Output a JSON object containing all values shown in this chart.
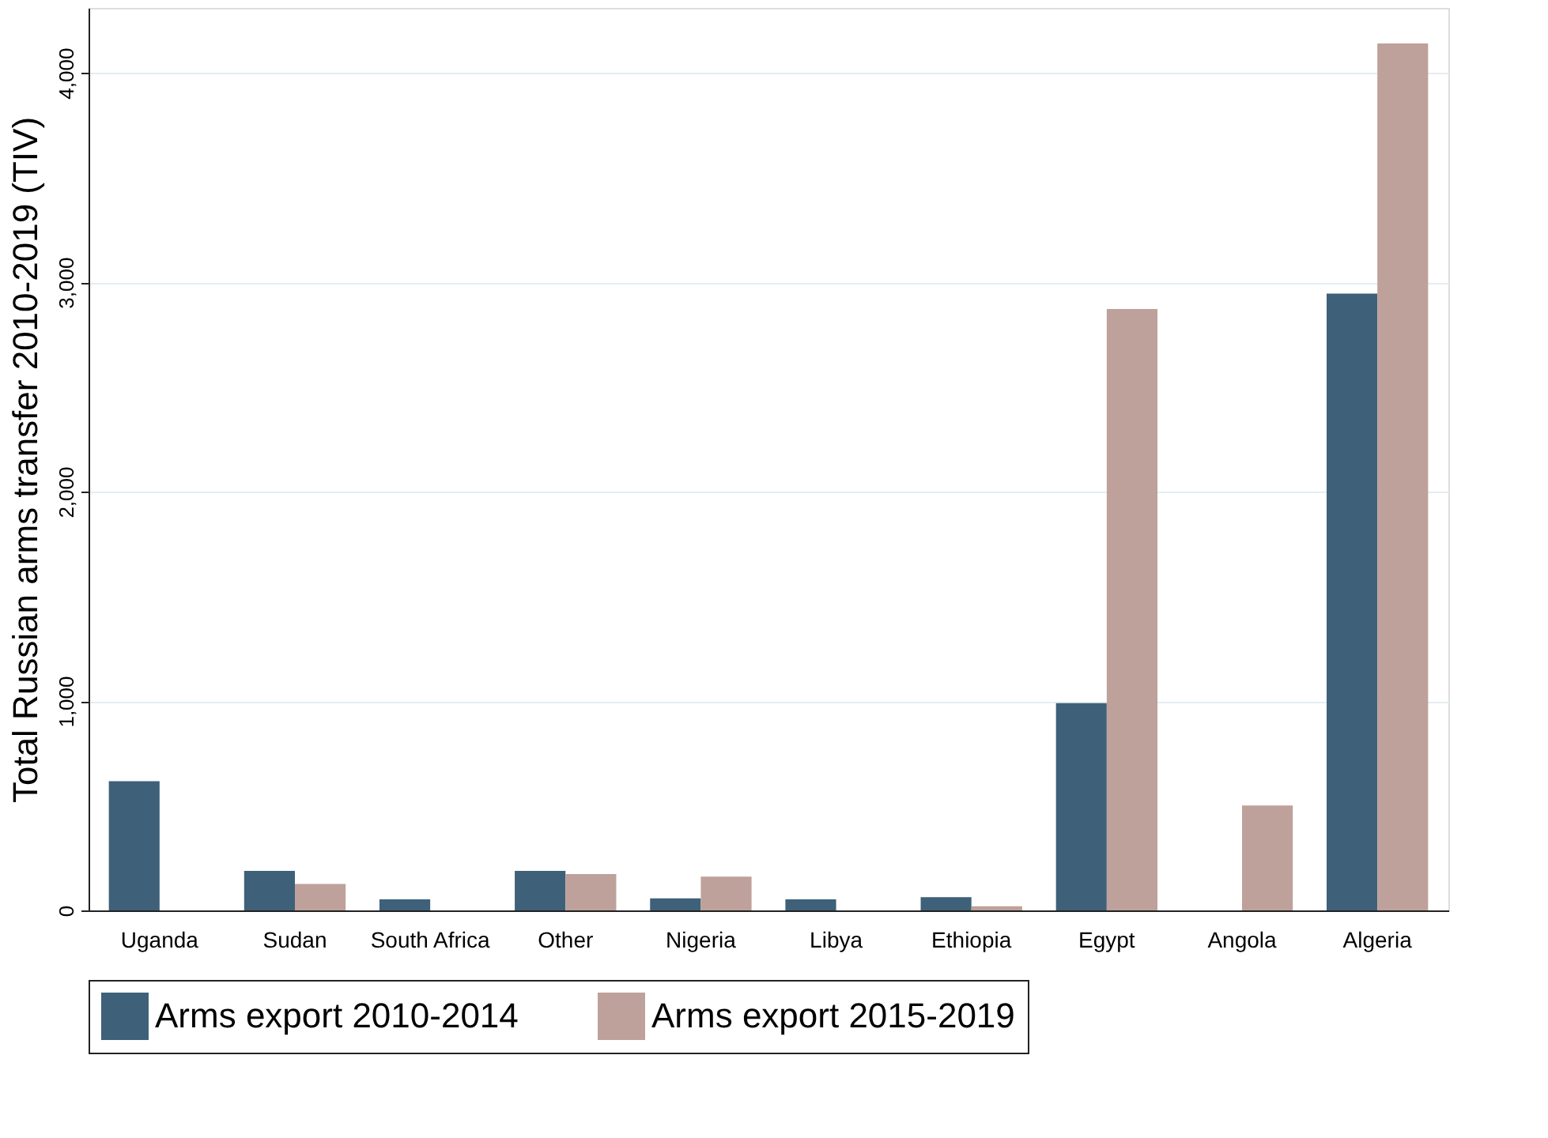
{
  "chart_data": {
    "type": "bar",
    "ylabel": "Total Russian arms transfer 2010-2019 (TIV)",
    "categories": [
      "Uganda",
      "Sudan",
      "South Africa",
      "Other",
      "Nigeria",
      "Libya",
      "Ethiopia",
      "Egypt",
      "Angola",
      "Algeria"
    ],
    "series": [
      {
        "name": "Arms export 2010-2014",
        "color": "#3e6179",
        "values": [
          617,
          189,
          53,
          189,
          58,
          53,
          63,
          990,
          null,
          2946
        ]
      },
      {
        "name": "Arms export 2015-2019",
        "color": "#bea19a",
        "values": [
          null,
          126,
          null,
          174,
          161,
          null,
          20,
          2872,
          501,
          4140
        ]
      }
    ],
    "ylim": [
      0,
      4310
    ],
    "yticks": [
      {
        "value": 0,
        "label": "0"
      },
      {
        "value": 1000,
        "label": "1,000"
      },
      {
        "value": 2000,
        "label": "2,000"
      },
      {
        "value": 3000,
        "label": "3,000"
      },
      {
        "value": 4000,
        "label": "4,000"
      }
    ],
    "grid": "y",
    "legend": "bottom"
  }
}
